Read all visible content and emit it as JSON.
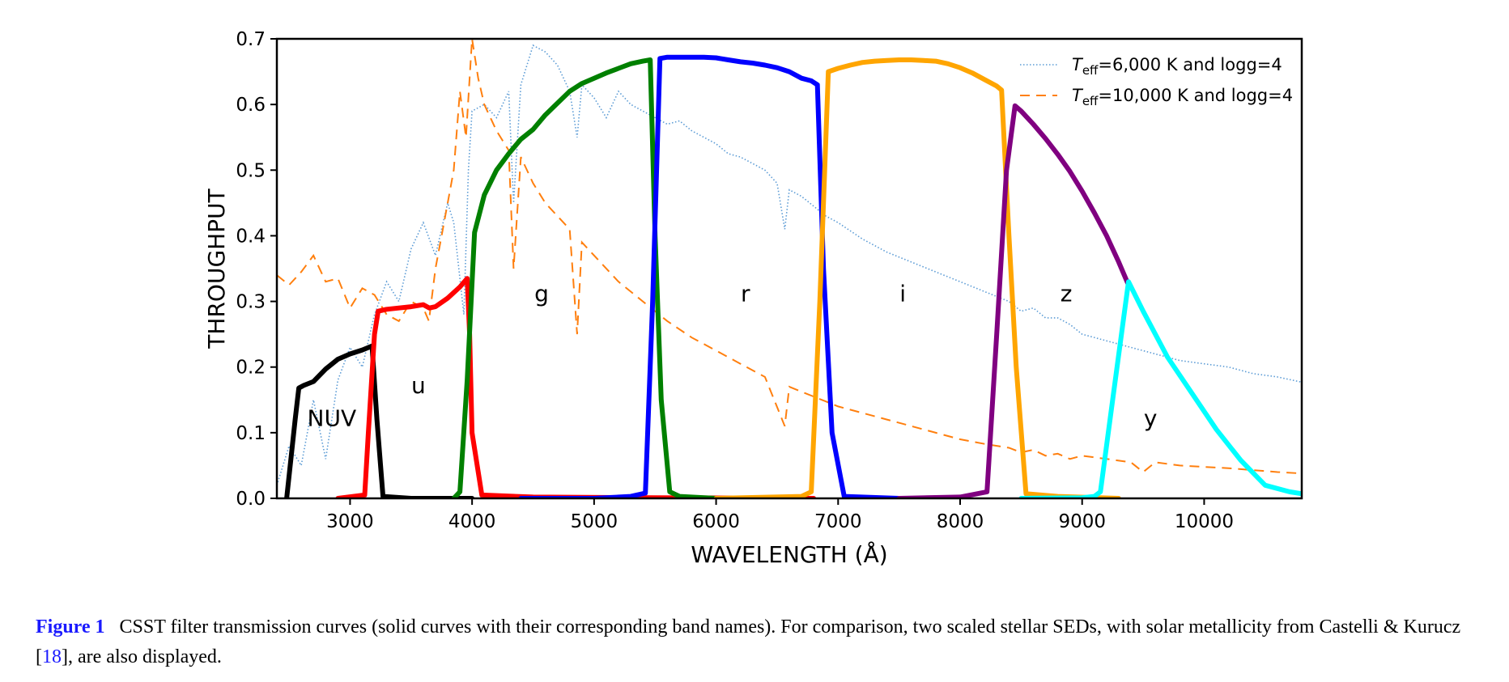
{
  "chart_data": {
    "type": "line",
    "xlabel": "WAVELENGTH (Å)",
    "ylabel": "THROUGHPUT",
    "xlim": [
      2400,
      10800
    ],
    "ylim": [
      0.0,
      0.7
    ],
    "grid": false,
    "legend_position": "top-right",
    "xticks": [
      3000,
      4000,
      5000,
      6000,
      7000,
      8000,
      9000,
      10000
    ],
    "yticks": [
      0.0,
      0.1,
      0.2,
      0.3,
      0.4,
      0.5,
      0.6,
      0.7
    ],
    "xtick_labels": [
      "3000",
      "4000",
      "5000",
      "6000",
      "7000",
      "8000",
      "9000",
      "10000"
    ],
    "ytick_labels": [
      "0.0",
      "0.1",
      "0.2",
      "0.3",
      "0.4",
      "0.5",
      "0.6",
      "0.7"
    ],
    "filters": [
      {
        "name": "NUV",
        "color": "#000000",
        "label_pos": [
          2850,
          0.11
        ],
        "x": [
          2480,
          2550,
          2580,
          2620,
          2700,
          2800,
          2900,
          3000,
          3100,
          3180,
          3220,
          3270,
          3500,
          4000
        ],
        "y": [
          0.0,
          0.12,
          0.168,
          0.172,
          0.178,
          0.197,
          0.212,
          0.22,
          0.226,
          0.232,
          0.12,
          0.003,
          0.0,
          0.0
        ]
      },
      {
        "name": "u",
        "color": "#ff0000",
        "label_pos": [
          3560,
          0.16
        ],
        "x": [
          2900,
          3120,
          3150,
          3200,
          3230,
          3300,
          3400,
          3500,
          3600,
          3650,
          3700,
          3800,
          3900,
          3960,
          3980,
          4000,
          4080,
          4500,
          5500,
          6800
        ],
        "y": [
          0.0,
          0.005,
          0.1,
          0.25,
          0.285,
          0.288,
          0.29,
          0.292,
          0.295,
          0.29,
          0.292,
          0.305,
          0.322,
          0.335,
          0.25,
          0.1,
          0.005,
          0.002,
          0.001,
          0.0
        ]
      },
      {
        "name": "g",
        "color": "#008000",
        "label_pos": [
          4570,
          0.3
        ],
        "x": [
          3850,
          3900,
          3960,
          4020,
          4100,
          4200,
          4300,
          4400,
          4500,
          4600,
          4700,
          4800,
          4900,
          5000,
          5100,
          5200,
          5300,
          5400,
          5460,
          5500,
          5550,
          5620,
          5700,
          6000
        ],
        "y": [
          0.0,
          0.01,
          0.18,
          0.405,
          0.462,
          0.5,
          0.525,
          0.547,
          0.562,
          0.584,
          0.602,
          0.62,
          0.632,
          0.64,
          0.648,
          0.655,
          0.662,
          0.666,
          0.668,
          0.4,
          0.15,
          0.01,
          0.003,
          0.0
        ]
      },
      {
        "name": "r",
        "color": "#0000ff",
        "label_pos": [
          6240,
          0.3
        ],
        "x": [
          4400,
          5000,
          5300,
          5420,
          5480,
          5540,
          5600,
          5700,
          5800,
          5900,
          6000,
          6100,
          6200,
          6300,
          6400,
          6500,
          6600,
          6700,
          6780,
          6830,
          6880,
          6950,
          7050,
          7500
        ],
        "y": [
          0.0,
          0.0,
          0.003,
          0.008,
          0.3,
          0.67,
          0.672,
          0.672,
          0.672,
          0.672,
          0.671,
          0.668,
          0.665,
          0.663,
          0.66,
          0.656,
          0.65,
          0.64,
          0.636,
          0.63,
          0.35,
          0.1,
          0.003,
          0.0
        ]
      },
      {
        "name": "i",
        "color": "#ffa500",
        "label_pos": [
          7530,
          0.3
        ],
        "x": [
          6000,
          6700,
          6780,
          6850,
          6920,
          7000,
          7100,
          7200,
          7300,
          7400,
          7500,
          7600,
          7700,
          7800,
          7900,
          8000,
          8100,
          8200,
          8300,
          8340,
          8400,
          8460,
          8540,
          8800,
          9300
        ],
        "y": [
          0.0,
          0.003,
          0.01,
          0.3,
          0.65,
          0.655,
          0.66,
          0.664,
          0.666,
          0.667,
          0.668,
          0.668,
          0.667,
          0.666,
          0.662,
          0.656,
          0.648,
          0.638,
          0.628,
          0.622,
          0.4,
          0.2,
          0.007,
          0.003,
          0.0
        ]
      },
      {
        "name": "z",
        "color": "#800080",
        "label_pos": [
          8870,
          0.3
        ],
        "x": [
          7500,
          8000,
          8220,
          8300,
          8380,
          8450,
          8500,
          8600,
          8700,
          8800,
          8900,
          9000,
          9100,
          9200,
          9300,
          9380
        ],
        "y": [
          0.0,
          0.002,
          0.01,
          0.25,
          0.5,
          0.598,
          0.59,
          0.57,
          0.548,
          0.524,
          0.498,
          0.468,
          0.435,
          0.4,
          0.36,
          0.325
        ]
      },
      {
        "name": "y",
        "color": "#00ffff",
        "label_pos": [
          9560,
          0.11
        ],
        "x": [
          8500,
          9000,
          9100,
          9150,
          9250,
          9380,
          9500,
          9700,
          9900,
          10100,
          10300,
          10500,
          10700,
          10800
        ],
        "y": [
          0.0,
          0.001,
          0.003,
          0.01,
          0.15,
          0.33,
          0.285,
          0.215,
          0.16,
          0.105,
          0.058,
          0.02,
          0.01,
          0.007
        ]
      }
    ],
    "seds": [
      {
        "name": "T_eff=6,000 K and logg=4",
        "name_parts": [
          "T",
          "eff",
          "=6,000 K and logg=4"
        ],
        "color": "#5b9bd5",
        "style": "dotted",
        "x": [
          2400,
          2500,
          2600,
          2700,
          2800,
          2900,
          3000,
          3100,
          3200,
          3300,
          3400,
          3500,
          3600,
          3700,
          3800,
          3850,
          3933,
          3970,
          4000,
          4100,
          4200,
          4300,
          4340,
          4400,
          4500,
          4600,
          4700,
          4800,
          4861,
          4900,
          5000,
          5100,
          5200,
          5300,
          5400,
          5500,
          5600,
          5700,
          5800,
          5900,
          6000,
          6100,
          6200,
          6300,
          6400,
          6500,
          6563,
          6600,
          6700,
          6800,
          6900,
          7000,
          7200,
          7400,
          7600,
          7800,
          8000,
          8200,
          8400,
          8500,
          8600,
          8700,
          8800,
          8900,
          9000,
          9200,
          9400,
          9600,
          9800,
          10000,
          10200,
          10400,
          10600,
          10800
        ],
        "y": [
          0.02,
          0.08,
          0.05,
          0.15,
          0.06,
          0.18,
          0.23,
          0.2,
          0.28,
          0.33,
          0.3,
          0.38,
          0.42,
          0.37,
          0.45,
          0.42,
          0.28,
          0.5,
          0.59,
          0.6,
          0.58,
          0.62,
          0.45,
          0.63,
          0.69,
          0.68,
          0.66,
          0.62,
          0.55,
          0.63,
          0.61,
          0.58,
          0.62,
          0.6,
          0.59,
          0.58,
          0.57,
          0.575,
          0.56,
          0.55,
          0.54,
          0.525,
          0.52,
          0.51,
          0.5,
          0.48,
          0.41,
          0.47,
          0.46,
          0.445,
          0.43,
          0.42,
          0.395,
          0.375,
          0.36,
          0.345,
          0.33,
          0.315,
          0.3,
          0.285,
          0.29,
          0.275,
          0.275,
          0.265,
          0.25,
          0.24,
          0.23,
          0.22,
          0.21,
          0.205,
          0.2,
          0.19,
          0.185,
          0.177
        ]
      },
      {
        "name": "T_eff=10,000 K and logg=4",
        "name_parts": [
          "T",
          "eff",
          "=10,000 K and logg=4"
        ],
        "color": "#ff7f0e",
        "style": "dashed",
        "x": [
          2400,
          2500,
          2600,
          2700,
          2800,
          2900,
          3000,
          3100,
          3200,
          3300,
          3400,
          3500,
          3600,
          3646,
          3700,
          3750,
          3800,
          3850,
          3900,
          3950,
          4000,
          4050,
          4100,
          4200,
          4300,
          4340,
          4400,
          4500,
          4600,
          4700,
          4800,
          4861,
          4900,
          5000,
          5200,
          5400,
          5600,
          5800,
          6000,
          6200,
          6400,
          6563,
          6600,
          6800,
          7000,
          7200,
          7400,
          7600,
          7800,
          8000,
          8200,
          8400,
          8500,
          8600,
          8700,
          8800,
          8900,
          9000,
          9200,
          9400,
          9500,
          9600,
          9800,
          10000,
          10200,
          10400,
          10600,
          10800
        ],
        "y": [
          0.34,
          0.325,
          0.345,
          0.37,
          0.33,
          0.335,
          0.29,
          0.32,
          0.31,
          0.28,
          0.27,
          0.3,
          0.29,
          0.27,
          0.35,
          0.4,
          0.45,
          0.5,
          0.62,
          0.55,
          0.7,
          0.64,
          0.6,
          0.56,
          0.53,
          0.35,
          0.52,
          0.48,
          0.45,
          0.43,
          0.41,
          0.25,
          0.39,
          0.37,
          0.33,
          0.3,
          0.27,
          0.245,
          0.225,
          0.205,
          0.185,
          0.11,
          0.17,
          0.155,
          0.14,
          0.13,
          0.12,
          0.11,
          0.1,
          0.09,
          0.083,
          0.077,
          0.07,
          0.074,
          0.065,
          0.068,
          0.06,
          0.065,
          0.06,
          0.055,
          0.04,
          0.055,
          0.05,
          0.048,
          0.046,
          0.043,
          0.04,
          0.038
        ]
      }
    ]
  },
  "caption": {
    "figure_label": "Figure 1",
    "text_before_ref": "CSST filter transmission curves (solid curves with their corresponding band names). For comparison, two scaled stellar SEDs, with solar metallicity from Castelli & Kurucz [",
    "ref": "18",
    "text_after_ref": "], are also displayed."
  }
}
